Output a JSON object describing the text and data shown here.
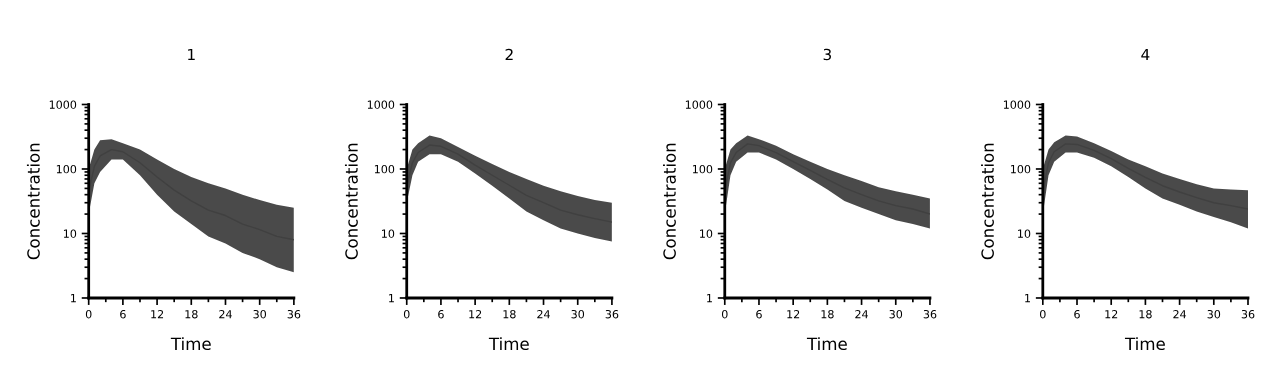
{
  "chart_data": [
    {
      "type": "line",
      "title": "1",
      "xlabel": "Time",
      "ylabel": "Concentration",
      "log": "y",
      "grid": false,
      "xlim": [
        0,
        36
      ],
      "xticks": [
        0,
        6,
        12,
        18,
        24,
        30,
        36
      ],
      "ylim": [
        1,
        1000
      ],
      "yticks": [
        1,
        10,
        100,
        1000
      ],
      "x": [
        0,
        1,
        2,
        4,
        6,
        9,
        12,
        15,
        18,
        21,
        24,
        27,
        30,
        33,
        36
      ],
      "series": [
        {
          "color": "#404040",
          "values": [
            45,
            110,
            160,
            200,
            185,
            125,
            75,
            47,
            32,
            23,
            19,
            14,
            11.5,
            9,
            8
          ],
          "lower": [
            20,
            60,
            90,
            140,
            140,
            80,
            40,
            22,
            14,
            9,
            7,
            5,
            4,
            3,
            2.5
          ],
          "upper": [
            100,
            200,
            280,
            290,
            250,
            200,
            140,
            100,
            75,
            60,
            50,
            40,
            33,
            28,
            25
          ]
        }
      ]
    },
    {
      "type": "line",
      "title": "2",
      "xlabel": "Time",
      "ylabel": "Concentration",
      "log": "y",
      "grid": false,
      "xlim": [
        0,
        36
      ],
      "xticks": [
        0,
        6,
        12,
        18,
        24,
        30,
        36
      ],
      "ylim": [
        1,
        1000
      ],
      "yticks": [
        1,
        10,
        100,
        1000
      ],
      "x": [
        0,
        1,
        2,
        4,
        6,
        9,
        12,
        15,
        18,
        21,
        24,
        27,
        30,
        33,
        36
      ],
      "series": [
        {
          "color": "#404040",
          "values": [
            55,
            125,
            180,
            235,
            225,
            170,
            115,
            80,
            56,
            39,
            30,
            23,
            19.5,
            17,
            15
          ],
          "lower": [
            30,
            80,
            130,
            170,
            170,
            130,
            85,
            55,
            35,
            22,
            16,
            12,
            10,
            8.5,
            7.5
          ],
          "upper": [
            100,
            200,
            250,
            330,
            300,
            220,
            160,
            120,
            90,
            70,
            55,
            45,
            38,
            33,
            30
          ]
        }
      ]
    },
    {
      "type": "line",
      "title": "3",
      "xlabel": "Time",
      "ylabel": "Concentration",
      "log": "y",
      "grid": false,
      "xlim": [
        0,
        36
      ],
      "xticks": [
        0,
        6,
        12,
        18,
        24,
        30,
        36
      ],
      "ylim": [
        1,
        1000
      ],
      "yticks": [
        1,
        10,
        100,
        1000
      ],
      "x": [
        0,
        1,
        2,
        4,
        6,
        9,
        12,
        15,
        18,
        21,
        24,
        27,
        30,
        33,
        36
      ],
      "series": [
        {
          "color": "#404040",
          "values": [
            45,
            125,
            180,
            245,
            230,
            180,
            130,
            95,
            69,
            51,
            40,
            32,
            27,
            24,
            20
          ],
          "lower": [
            20,
            80,
            130,
            180,
            180,
            140,
            100,
            70,
            48,
            32,
            25,
            20,
            16,
            14,
            12
          ],
          "upper": [
            100,
            200,
            250,
            330,
            290,
            230,
            170,
            130,
            100,
            80,
            65,
            52,
            45,
            40,
            35
          ]
        }
      ]
    },
    {
      "type": "line",
      "title": "4",
      "xlabel": "Time",
      "ylabel": "Concentration",
      "log": "y",
      "grid": false,
      "xlim": [
        0,
        36
      ],
      "xticks": [
        0,
        6,
        12,
        18,
        24,
        30,
        36
      ],
      "ylim": [
        1,
        1000
      ],
      "yticks": [
        1,
        10,
        100,
        1000
      ],
      "x": [
        0,
        1,
        2,
        4,
        6,
        9,
        12,
        15,
        18,
        21,
        24,
        27,
        30,
        33,
        36
      ],
      "series": [
        {
          "color": "#404040",
          "values": [
            45,
            125,
            185,
            245,
            240,
            195,
            145,
            102,
            74,
            55,
            44,
            36,
            30,
            27,
            24
          ],
          "lower": [
            20,
            80,
            130,
            180,
            180,
            150,
            110,
            75,
            50,
            35,
            28,
            22,
            18,
            15,
            12
          ],
          "upper": [
            100,
            200,
            260,
            330,
            320,
            250,
            190,
            140,
            110,
            85,
            70,
            58,
            50,
            48,
            47
          ]
        }
      ]
    }
  ]
}
